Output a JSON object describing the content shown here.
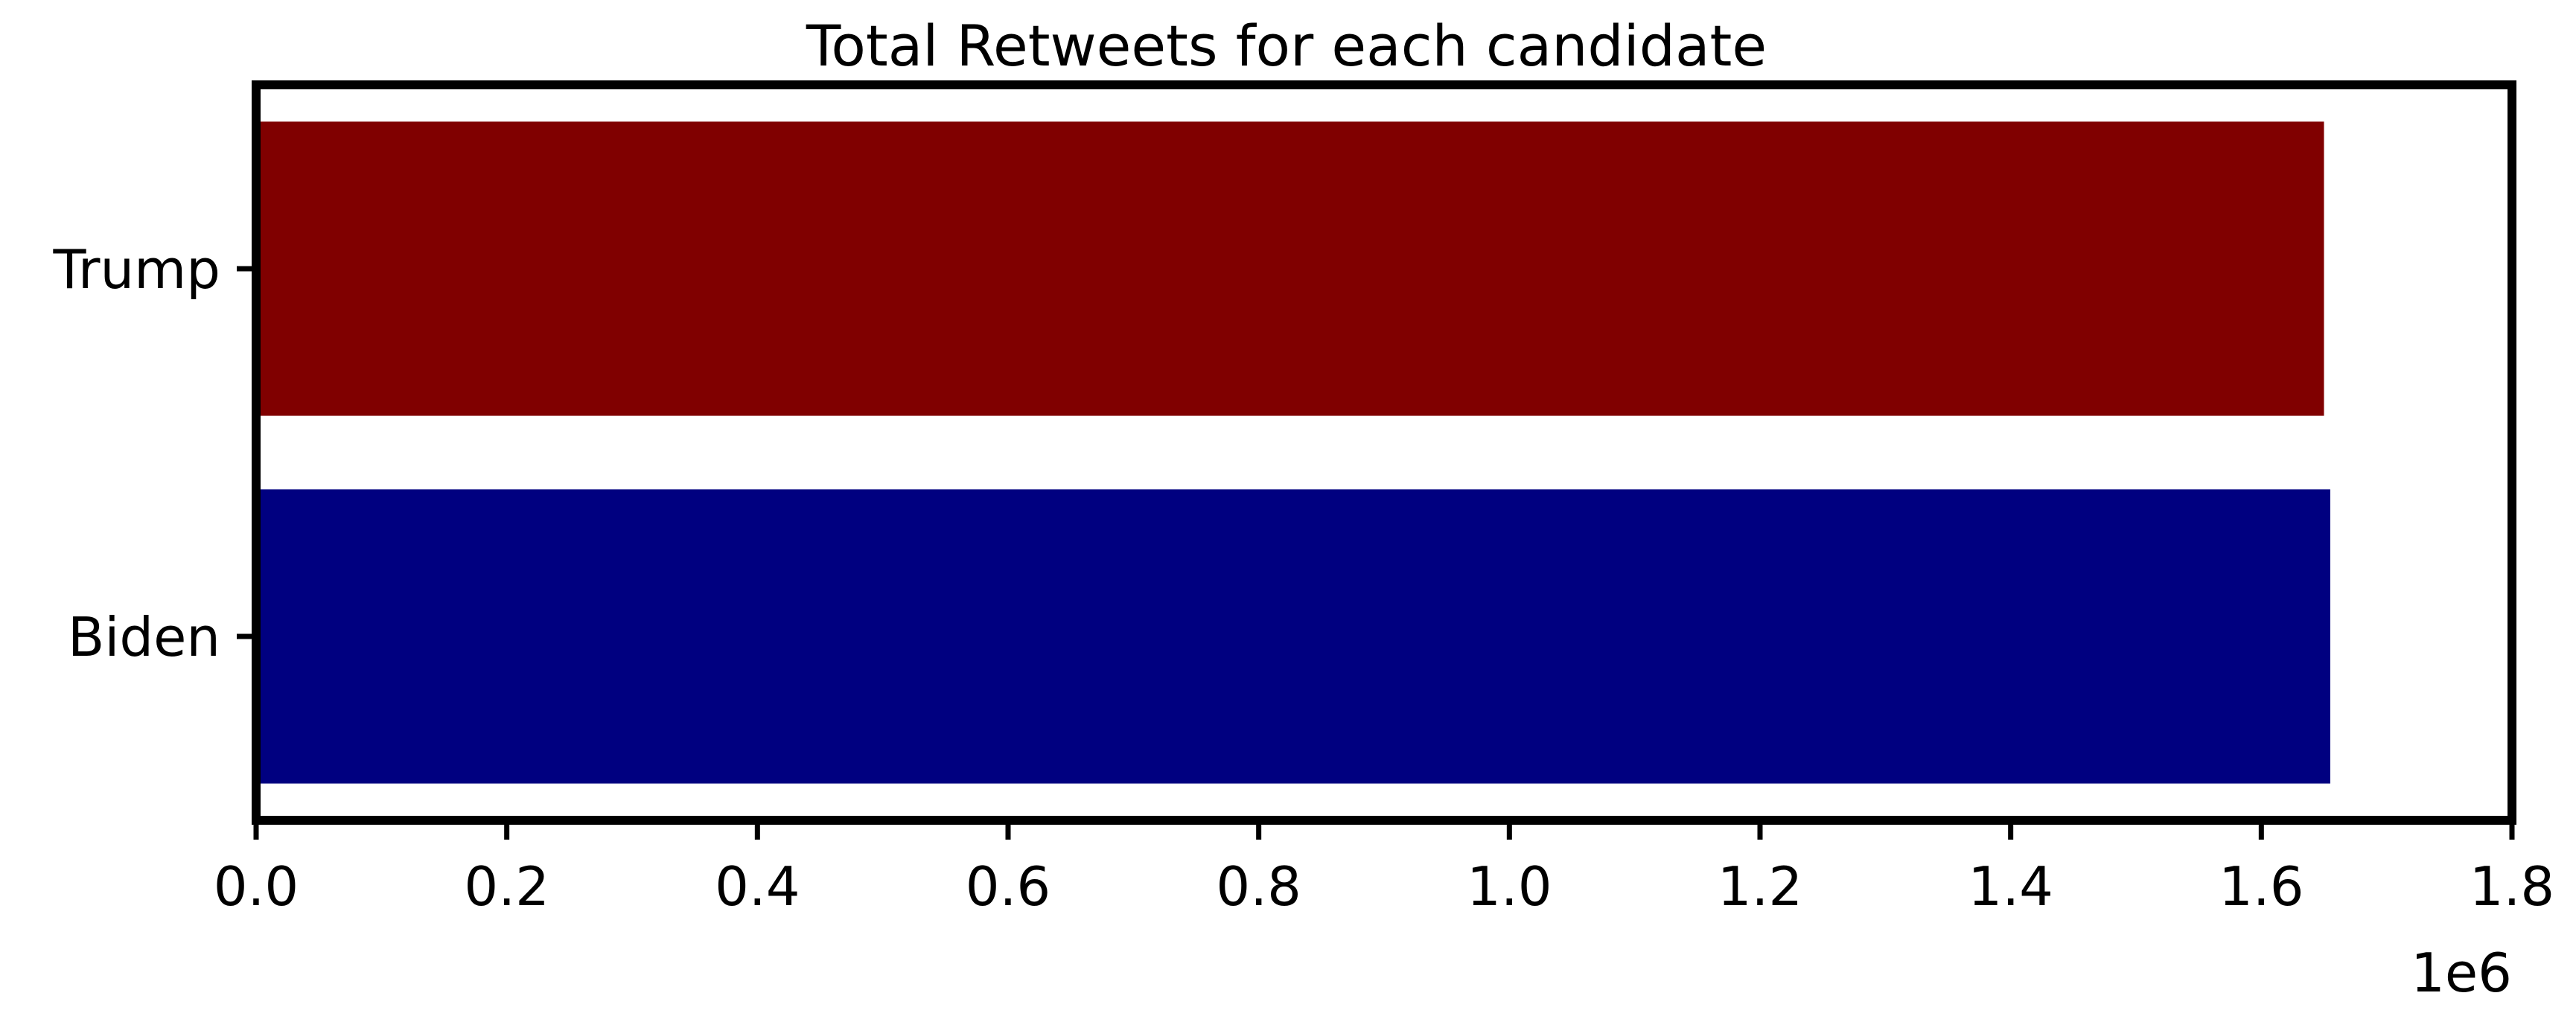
{
  "chart_data": {
    "type": "bar",
    "orientation": "horizontal",
    "title": "Total Retweets for each candidate",
    "xlabel": "",
    "ylabel": "",
    "categories": [
      "Trump",
      "Biden"
    ],
    "values": [
      1650000,
      1655000
    ],
    "bar_colors": [
      "#800000",
      "#000080"
    ],
    "xlim": [
      0,
      1800000
    ],
    "xticks": [
      0,
      200000,
      400000,
      600000,
      800000,
      1000000,
      1200000,
      1400000,
      1600000,
      1800000
    ],
    "xtick_labels": [
      "0.0",
      "0.2",
      "0.4",
      "0.6",
      "0.8",
      "1.0",
      "1.2",
      "1.4",
      "1.6",
      "1.8"
    ],
    "x_offset_label": "1e6",
    "grid": false,
    "legend": "none"
  }
}
